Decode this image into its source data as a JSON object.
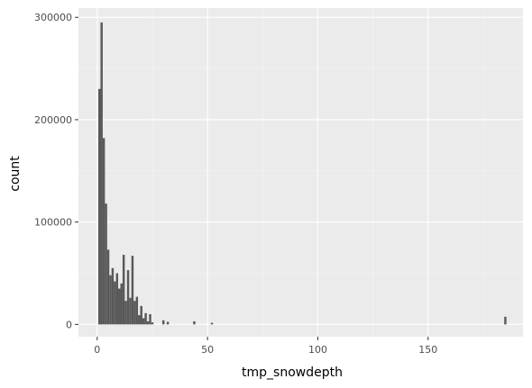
{
  "colors": {
    "panel_background": "#ebebeb",
    "grid_major": "#ffffff",
    "bar_fill": "#595959",
    "tick_text": "#4d4d4d",
    "title_text": "#000000"
  },
  "chart_data": {
    "type": "bar",
    "title": "",
    "xlabel": "tmp_snowdepth",
    "ylabel": "count",
    "xlim": [
      -8.5,
      193
    ],
    "ylim": [
      -12000,
      309000
    ],
    "x_ticks": [
      0,
      50,
      100,
      150
    ],
    "x_tick_labels": [
      "0",
      "50",
      "100",
      "150"
    ],
    "y_ticks": [
      0,
      100000,
      200000,
      300000
    ],
    "y_tick_labels": [
      "0",
      "100000",
      "200000",
      "300000"
    ],
    "grid": true,
    "legend": "none",
    "bin_width": 1,
    "bins": [
      {
        "x": 1,
        "count": 230000
      },
      {
        "x": 2,
        "count": 295000
      },
      {
        "x": 3,
        "count": 182000
      },
      {
        "x": 4,
        "count": 118000
      },
      {
        "x": 5,
        "count": 73000
      },
      {
        "x": 6,
        "count": 48000
      },
      {
        "x": 7,
        "count": 55000
      },
      {
        "x": 8,
        "count": 42000
      },
      {
        "x": 9,
        "count": 50000
      },
      {
        "x": 10,
        "count": 35000
      },
      {
        "x": 11,
        "count": 40000
      },
      {
        "x": 12,
        "count": 68000
      },
      {
        "x": 13,
        "count": 23000
      },
      {
        "x": 14,
        "count": 53000
      },
      {
        "x": 15,
        "count": 26000
      },
      {
        "x": 16,
        "count": 67000
      },
      {
        "x": 17,
        "count": 23000
      },
      {
        "x": 18,
        "count": 27000
      },
      {
        "x": 19,
        "count": 9000
      },
      {
        "x": 20,
        "count": 18000
      },
      {
        "x": 21,
        "count": 6000
      },
      {
        "x": 22,
        "count": 11000
      },
      {
        "x": 23,
        "count": 3000
      },
      {
        "x": 24,
        "count": 10000
      },
      {
        "x": 25,
        "count": 2000
      },
      {
        "x": 30,
        "count": 4000
      },
      {
        "x": 32,
        "count": 2500
      },
      {
        "x": 44,
        "count": 3000
      },
      {
        "x": 52,
        "count": 1500
      },
      {
        "x": 185,
        "count": 7500
      }
    ]
  }
}
